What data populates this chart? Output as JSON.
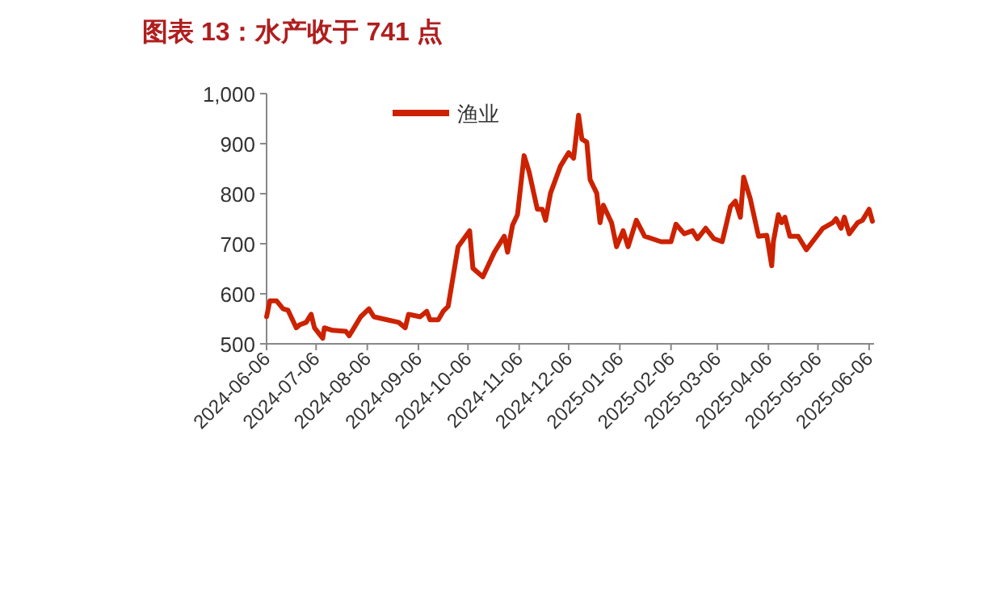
{
  "chart_data": {
    "type": "line",
    "title": "图表 13：水产收于 741 点",
    "x": [
      "2024-06-06",
      "2024-06-08",
      "2024-06-12",
      "2024-06-16",
      "2024-06-19",
      "2024-06-24",
      "2024-06-26",
      "2024-06-30",
      "2024-07-03",
      "2024-07-05",
      "2024-07-10",
      "2024-07-11",
      "2024-07-16",
      "2024-07-24",
      "2024-07-26",
      "2024-07-29",
      "2024-08-02",
      "2024-08-07",
      "2024-08-10",
      "2024-08-18",
      "2024-08-25",
      "2024-08-29",
      "2024-08-31",
      "2024-09-07",
      "2024-09-11",
      "2024-09-13",
      "2024-09-18",
      "2024-09-21",
      "2024-09-24",
      "2024-09-30",
      "2024-10-07",
      "2024-10-09",
      "2024-10-15",
      "2024-10-22",
      "2024-10-28",
      "2024-10-30",
      "2024-11-02",
      "2024-11-05",
      "2024-11-09",
      "2024-11-12",
      "2024-11-17",
      "2024-11-20",
      "2024-11-22",
      "2024-11-25",
      "2024-12-01",
      "2024-12-06",
      "2024-12-09",
      "2024-12-12",
      "2024-12-14",
      "2024-12-17",
      "2024-12-19",
      "2024-12-23",
      "2024-12-25",
      "2024-12-27",
      "2025-01-01",
      "2025-01-04",
      "2025-01-08",
      "2025-01-11",
      "2025-01-16",
      "2025-01-21",
      "2025-01-31",
      "2025-02-06",
      "2025-02-09",
      "2025-02-14",
      "2025-02-19",
      "2025-02-22",
      "2025-02-27",
      "2025-03-04",
      "2025-03-09",
      "2025-03-14",
      "2025-03-17",
      "2025-03-20",
      "2025-03-22",
      "2025-03-26",
      "2025-03-31",
      "2025-04-05",
      "2025-04-08",
      "2025-04-09",
      "2025-04-12",
      "2025-04-14",
      "2025-04-16",
      "2025-04-19",
      "2025-04-24",
      "2025-04-29",
      "2025-05-09",
      "2025-05-15",
      "2025-05-17",
      "2025-05-20",
      "2025-05-22",
      "2025-05-25",
      "2025-05-30",
      "2025-06-02",
      "2025-06-06",
      "2025-06-08"
    ],
    "series": [
      {
        "name": "渔业",
        "color": "#cc2200",
        "values": [
          554,
          586,
          586,
          570,
          567,
          532,
          538,
          543,
          559,
          532,
          511,
          532,
          527,
          525,
          516,
          532,
          554,
          570,
          554,
          548,
          543,
          532,
          559,
          554,
          565,
          548,
          548,
          565,
          575,
          694,
          726,
          651,
          634,
          683,
          715,
          683,
          737,
          758,
          876,
          844,
          769,
          769,
          747,
          801,
          855,
          882,
          871,
          957,
          909,
          903,
          828,
          801,
          742,
          777,
          742,
          694,
          726,
          694,
          747,
          715,
          704,
          704,
          739,
          720,
          726,
          710,
          731,
          710,
          704,
          774,
          785,
          753,
          833,
          790,
          715,
          717,
          656,
          704,
          758,
          742,
          753,
          715,
          715,
          688,
          731,
          742,
          750,
          731,
          753,
          720,
          742,
          747,
          769,
          745
        ]
      }
    ],
    "xlim": [
      "2024-06-06",
      "2025-06-09"
    ],
    "xticks": [
      "2024-06-06",
      "2024-07-06",
      "2024-08-06",
      "2024-09-06",
      "2024-10-06",
      "2024-11-06",
      "2024-12-06",
      "2025-01-06",
      "2025-02-06",
      "2025-03-06",
      "2025-04-06",
      "2025-05-06",
      "2025-06-06"
    ],
    "ylim": [
      500,
      1000
    ],
    "yticks": [
      500,
      600,
      700,
      800,
      900,
      {
        "value": 1000,
        "label": "1,000"
      }
    ],
    "grid": false,
    "legend": "top"
  }
}
